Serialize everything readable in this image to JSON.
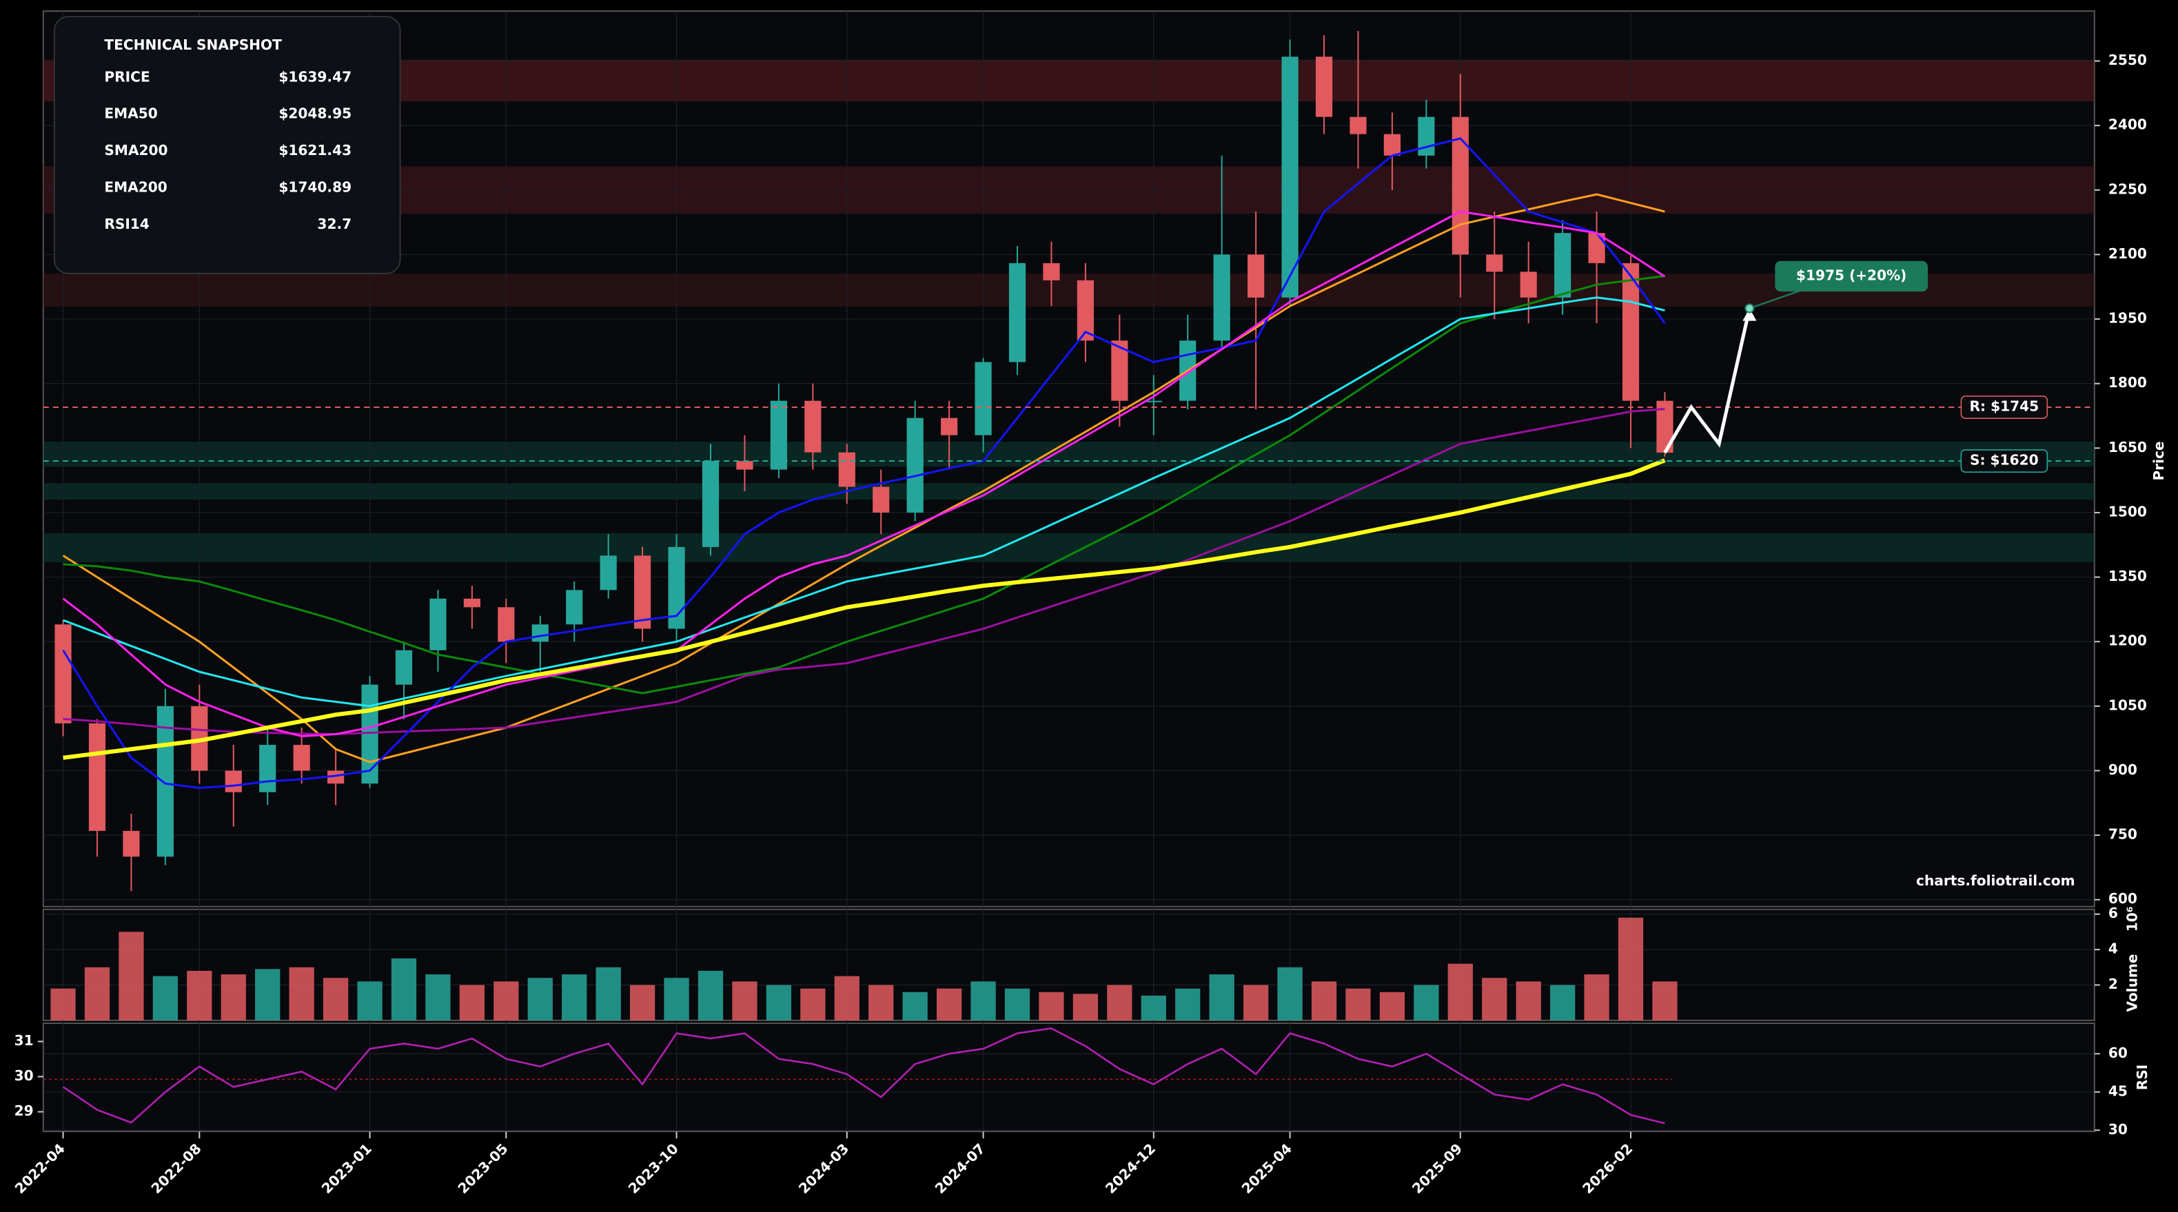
{
  "snapshot": {
    "title": "TECHNICAL SNAPSHOT",
    "rows": [
      {
        "label": "PRICE",
        "value": "$1639.47",
        "color": "#ffffff"
      },
      {
        "label": "EMA50",
        "value": "$2048.95",
        "color": "#ff4fd8"
      },
      {
        "label": "SMA200",
        "value": "$1621.43",
        "color": "#ffff1a"
      },
      {
        "label": "EMA200",
        "value": "$1740.89",
        "color": "#c020c0"
      },
      {
        "label": "RSI14",
        "value": "32.7",
        "color": "#c020c0"
      }
    ]
  },
  "chart_data": {
    "type": "candlestick",
    "categories": [
      "2022-04",
      "2022-05",
      "2022-06",
      "2022-07",
      "2022-08",
      "2022-09",
      "2022-10",
      "2022-11",
      "2022-12",
      "2023-01",
      "2023-02",
      "2023-03",
      "2023-04",
      "2023-05",
      "2023-06",
      "2023-07",
      "2023-08",
      "2023-09",
      "2023-10",
      "2023-11",
      "2023-12",
      "2024-01",
      "2024-02",
      "2024-03",
      "2024-04",
      "2024-05",
      "2024-06",
      "2024-07",
      "2024-08",
      "2024-09",
      "2024-10",
      "2024-11",
      "2024-12",
      "2025-01",
      "2025-02",
      "2025-03",
      "2025-04",
      "2025-05",
      "2025-06",
      "2025-07",
      "2025-08",
      "2025-09",
      "2025-10",
      "2025-11",
      "2025-12",
      "2026-01",
      "2026-02",
      "2026-03"
    ],
    "open": [
      1240,
      1010,
      760,
      700,
      1050,
      900,
      850,
      960,
      900,
      870,
      1100,
      1180,
      1300,
      1280,
      1200,
      1240,
      1320,
      1400,
      1230,
      1420,
      1620,
      1600,
      1760,
      1640,
      1560,
      1500,
      1720,
      1680,
      1850,
      2080,
      2040,
      1900,
      1760,
      1760,
      1900,
      2100,
      2000,
      2560,
      2420,
      2380,
      2330,
      2420,
      2100,
      2060,
      2000,
      2150,
      2080,
      1760
    ],
    "high": [
      1250,
      1020,
      800,
      1090,
      1100,
      960,
      1000,
      1000,
      950,
      1120,
      1200,
      1320,
      1330,
      1300,
      1260,
      1340,
      1450,
      1420,
      1450,
      1660,
      1680,
      1800,
      1800,
      1660,
      1600,
      1760,
      1760,
      1860,
      2120,
      2130,
      2080,
      1960,
      1820,
      1960,
      2330,
      2200,
      2600,
      2610,
      2620,
      2430,
      2460,
      2520,
      2200,
      2130,
      2180,
      2200,
      2100,
      1780
    ],
    "low": [
      980,
      700,
      620,
      680,
      870,
      770,
      820,
      870,
      820,
      860,
      1020,
      1130,
      1230,
      1150,
      1130,
      1200,
      1300,
      1200,
      1200,
      1400,
      1550,
      1580,
      1600,
      1520,
      1450,
      1480,
      1600,
      1640,
      1820,
      1980,
      1850,
      1700,
      1680,
      1740,
      1880,
      1740,
      1980,
      2380,
      2300,
      2250,
      2300,
      2000,
      1950,
      1940,
      1960,
      1940,
      1650,
      1630
    ],
    "close": [
      1010,
      760,
      700,
      1050,
      900,
      850,
      960,
      900,
      870,
      1100,
      1180,
      1300,
      1280,
      1200,
      1240,
      1320,
      1400,
      1230,
      1420,
      1620,
      1600,
      1760,
      1640,
      1560,
      1500,
      1720,
      1680,
      1850,
      2080,
      2040,
      1900,
      1760,
      1760,
      1900,
      2100,
      2000,
      2560,
      2420,
      2380,
      2330,
      2420,
      2100,
      2060,
      2000,
      2150,
      2080,
      1760,
      1639.47
    ],
    "up_color": "#26a69a",
    "down_color": "#e05a60",
    "ylim": [
      584,
      2666
    ],
    "yticks": [
      600,
      750,
      900,
      1050,
      1200,
      1350,
      1500,
      1650,
      1800,
      1950,
      2100,
      2250,
      2400,
      2550
    ],
    "y_label": "Price",
    "xticks": [
      "2022-04",
      "2022-08",
      "2023-01",
      "2023-05",
      "2023-10",
      "2024-03",
      "2024-07",
      "2024-12",
      "2025-04",
      "2025-09",
      "2026-02"
    ],
    "lines": [
      {
        "color": "#ffa020",
        "values": [
          1400,
          1350,
          1300,
          1250,
          1200,
          1140,
          1080,
          1020,
          950,
          920,
          940,
          960,
          980,
          1000,
          1030,
          1060,
          1090,
          1120,
          1150,
          1196,
          1242,
          1288,
          1334,
          1380,
          1423,
          1465,
          1508,
          1550,
          1596,
          1642,
          1688,
          1734,
          1780,
          1830,
          1880,
          1930,
          1980,
          2018,
          2056,
          2094,
          2132,
          2170,
          2188,
          2205,
          2223,
          2240,
          2220,
          2200
        ]
      },
      {
        "color": "#0a8a0a",
        "values": [
          1380,
          1375,
          1365,
          1350,
          1340,
          1318,
          1295,
          1273,
          1250,
          1223,
          1197,
          1170,
          1155,
          1140,
          1125,
          1110,
          1095,
          1080,
          1095,
          1110,
          1125,
          1140,
          1170,
          1200,
          1225,
          1250,
          1275,
          1300,
          1340,
          1380,
          1420,
          1460,
          1500,
          1545,
          1590,
          1635,
          1680,
          1732,
          1784,
          1836,
          1888,
          1940,
          1963,
          1985,
          2008,
          2030,
          2040,
          2050
        ]
      },
      {
        "color": "#22e8f0",
        "values": [
          1250,
          1220,
          1190,
          1160,
          1130,
          1110,
          1090,
          1070,
          1060,
          1050,
          1068,
          1085,
          1103,
          1120,
          1136,
          1152,
          1168,
          1184,
          1200,
          1228,
          1256,
          1284,
          1312,
          1340,
          1355,
          1370,
          1385,
          1400,
          1436,
          1472,
          1508,
          1544,
          1580,
          1615,
          1650,
          1685,
          1720,
          1766,
          1812,
          1858,
          1904,
          1950,
          1963,
          1975,
          1988,
          2000,
          1990,
          1970
        ]
      },
      {
        "color": "#9b0fa0",
        "values": [
          1020,
          1015,
          1008,
          1000,
          995,
          990,
          988,
          986,
          985,
          988,
          991,
          994,
          997,
          1000,
          1012,
          1024,
          1036,
          1048,
          1060,
          1090,
          1120,
          1135,
          1142,
          1150,
          1170,
          1190,
          1210,
          1230,
          1256,
          1282,
          1308,
          1334,
          1360,
          1390,
          1420,
          1450,
          1480,
          1516,
          1552,
          1588,
          1624,
          1660,
          1675,
          1690,
          1705,
          1720,
          1735,
          1740.89
        ]
      },
      {
        "color": "#1414ff",
        "values": [
          1180,
          1050,
          930,
          870,
          860,
          865,
          875,
          880,
          888,
          900,
          980,
          1060,
          1140,
          1200,
          1213,
          1225,
          1238,
          1250,
          1260,
          1350,
          1450,
          1500,
          1530,
          1550,
          1568,
          1585,
          1603,
          1620,
          1720,
          1820,
          1920,
          1885,
          1850,
          1867,
          1883,
          1900,
          2050,
          2200,
          2265,
          2330,
          2350,
          2370,
          2285,
          2200,
          2175,
          2150,
          2050,
          1940
        ]
      },
      {
        "color": "#ff22ee",
        "values": [
          1300,
          1240,
          1170,
          1100,
          1060,
          1030,
          1000,
          980,
          985,
          1000,
          1025,
          1050,
          1075,
          1100,
          1116,
          1132,
          1148,
          1164,
          1180,
          1240,
          1300,
          1350,
          1380,
          1400,
          1435,
          1470,
          1505,
          1540,
          1586,
          1632,
          1678,
          1724,
          1770,
          1825,
          1880,
          1935,
          1990,
          2032,
          2074,
          2116,
          2158,
          2200,
          2188,
          2175,
          2163,
          2150,
          2100,
          2048.95
        ]
      },
      {
        "color": "#ffff1a",
        "width": 3,
        "values": [
          930,
          940,
          950,
          960,
          970,
          985,
          1000,
          1015,
          1030,
          1040,
          1058,
          1075,
          1092,
          1110,
          1124,
          1138,
          1152,
          1166,
          1180,
          1200,
          1220,
          1240,
          1260,
          1280,
          1292,
          1305,
          1318,
          1330,
          1338,
          1346,
          1354,
          1362,
          1370,
          1382,
          1395,
          1408,
          1420,
          1436,
          1452,
          1468,
          1484,
          1500,
          1518,
          1536,
          1554,
          1572,
          1590,
          1621.43
        ]
      }
    ],
    "zones": [
      {
        "range": [
          2456,
          2553
        ],
        "color": "#5a1a1e"
      },
      {
        "range": [
          2195,
          2305
        ],
        "color": "#4a181c"
      },
      {
        "range": [
          1979,
          2056
        ],
        "color": "#3a1519"
      },
      {
        "range": [
          1607,
          1665
        ],
        "color": "#0e3a30"
      },
      {
        "range": [
          1530,
          1568
        ],
        "color": "#0e3a30"
      },
      {
        "range": [
          1385,
          1452
        ],
        "color": "#0e3a30"
      }
    ],
    "levels": [
      {
        "value": 1745,
        "label": "R: $1745",
        "color": "#e05a60"
      },
      {
        "value": 1620,
        "label": "S: $1620",
        "color": "#26a69a"
      }
    ],
    "projection": {
      "values": [
        1639.47,
        1745,
        1660,
        1975
      ],
      "label": {
        "value": 1975,
        "label": "$1975 (+20%)"
      },
      "color": "#1a7a5a"
    },
    "watermark": "charts.foliotrail.com",
    "volume": {
      "values": [
        1.8,
        3.0,
        5.0,
        2.5,
        2.8,
        2.6,
        2.9,
        3.0,
        2.4,
        2.2,
        3.5,
        2.6,
        2.0,
        2.2,
        2.4,
        2.6,
        3.0,
        2.0,
        2.4,
        2.8,
        2.2,
        2.0,
        1.8,
        2.5,
        2.0,
        1.6,
        1.8,
        2.2,
        1.8,
        1.6,
        1.5,
        2.0,
        1.4,
        1.8,
        2.6,
        2.0,
        3.0,
        2.2,
        1.8,
        1.6,
        2.0,
        3.2,
        2.4,
        2.2,
        2.0,
        2.6,
        5.8,
        2.2
      ],
      "ylim": [
        0,
        6.27
      ],
      "yticks": [
        2,
        4,
        6
      ],
      "y_label": "Volume",
      "scale_label": "10⁶"
    },
    "rsi": {
      "values": [
        47,
        38,
        33,
        45,
        55,
        47,
        50,
        53,
        46,
        62,
        64,
        62,
        66,
        58,
        55,
        60,
        64,
        48,
        68,
        66,
        68,
        58,
        56,
        52,
        43,
        56,
        60,
        62,
        68,
        70,
        63,
        54,
        48,
        56,
        62,
        52,
        68,
        64,
        58,
        55,
        60,
        52,
        44,
        42,
        48,
        44,
        36,
        32.7
      ],
      "color": "#b020b0",
      "ylim": [
        29.5,
        72
      ],
      "yticks": [
        30,
        45,
        60
      ],
      "y2lim": [
        28.44,
        31.52
      ],
      "y2ticks": [
        29,
        30,
        31
      ],
      "midline": 50,
      "y_label": "RSI"
    }
  }
}
